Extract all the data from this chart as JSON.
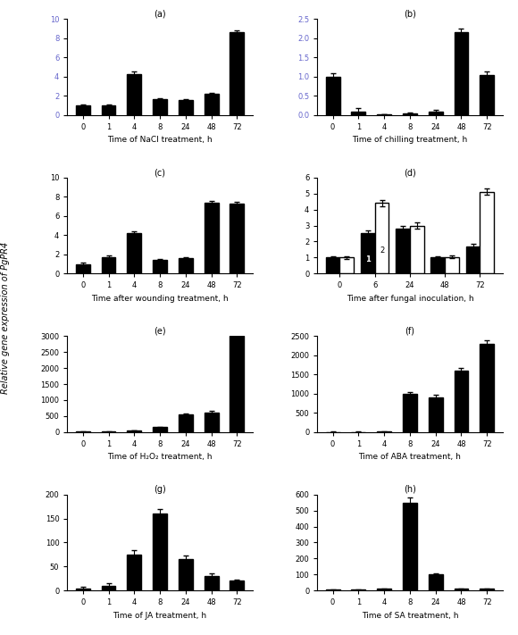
{
  "subplots": [
    {
      "label": "(a)",
      "xlabel": "Time of NaCl treatment, h",
      "x": [
        0,
        1,
        4,
        8,
        24,
        48,
        72
      ],
      "values": [
        1.0,
        1.0,
        4.3,
        1.65,
        1.55,
        2.2,
        8.6
      ],
      "errors": [
        0.1,
        0.1,
        0.2,
        0.15,
        0.1,
        0.15,
        0.2
      ],
      "ylim": [
        0,
        10
      ],
      "yticks": [
        0,
        2,
        4,
        6,
        8,
        10
      ],
      "bar_colors": [
        "black",
        "black",
        "black",
        "black",
        "black",
        "black",
        "black"
      ],
      "bar_edge_colors": [
        "black",
        "black",
        "black",
        "black",
        "black",
        "black",
        "black"
      ],
      "white_bars": [
        false,
        false,
        false,
        false,
        false,
        false,
        false
      ]
    },
    {
      "label": "(b)",
      "xlabel": "Time of chilling treatment, h",
      "x": [
        0,
        1,
        4,
        8,
        24,
        48,
        72
      ],
      "values": [
        1.0,
        0.1,
        0.02,
        0.05,
        0.08,
        2.15,
        1.05
      ],
      "errors": [
        0.08,
        0.08,
        0.01,
        0.02,
        0.05,
        0.1,
        0.08
      ],
      "ylim": [
        0,
        2.5
      ],
      "yticks": [
        0.0,
        0.5,
        1.0,
        1.5,
        2.0,
        2.5
      ],
      "bar_colors": [
        "black",
        "black",
        "black",
        "black",
        "black",
        "black",
        "black"
      ],
      "bar_edge_colors": [
        "black",
        "black",
        "black",
        "black",
        "black",
        "black",
        "black"
      ],
      "white_bars": [
        false,
        false,
        false,
        false,
        false,
        false,
        false
      ]
    },
    {
      "label": "(c)",
      "xlabel": "Time after wounding treatment, h",
      "x": [
        0,
        1,
        4,
        8,
        24,
        48,
        72
      ],
      "values": [
        1.0,
        1.7,
        4.2,
        1.4,
        1.6,
        7.4,
        7.3
      ],
      "errors": [
        0.1,
        0.15,
        0.2,
        0.12,
        0.1,
        0.2,
        0.15
      ],
      "ylim": [
        0,
        10
      ],
      "yticks": [
        0,
        2,
        4,
        6,
        8,
        10
      ],
      "bar_colors": [
        "black",
        "black",
        "black",
        "black",
        "black",
        "black",
        "black"
      ],
      "bar_edge_colors": [
        "black",
        "black",
        "black",
        "black",
        "black",
        "black",
        "black"
      ],
      "white_bars": [
        false,
        false,
        false,
        false,
        false,
        false,
        false
      ]
    },
    {
      "label": "(d)",
      "xlabel": "Time after fungal inoculation, h",
      "x": [
        0,
        6,
        24,
        48,
        72
      ],
      "values_black": [
        1.0,
        2.55,
        2.8,
        1.0,
        1.7
      ],
      "values_white": [
        1.0,
        4.4,
        3.0,
        1.05,
        5.1
      ],
      "errors_black": [
        0.08,
        0.15,
        0.2,
        0.1,
        0.15
      ],
      "errors_white": [
        0.08,
        0.2,
        0.2,
        0.08,
        0.2
      ],
      "ylim": [
        0,
        6
      ],
      "yticks": [
        0,
        1,
        2,
        3,
        4,
        5,
        6
      ],
      "has_two_series": true,
      "legend_labels": [
        "1",
        "2"
      ]
    },
    {
      "label": "(e)",
      "xlabel": "Time of H₂O₂ treatment, h",
      "x": [
        0,
        1,
        4,
        8,
        24,
        48,
        72
      ],
      "values": [
        10,
        10,
        50,
        150,
        550,
        600,
        3000
      ],
      "errors": [
        5,
        5,
        10,
        20,
        40,
        50,
        100
      ],
      "ylim": [
        0,
        3000
      ],
      "yticks": [
        0,
        500,
        1000,
        1500,
        2000,
        2500,
        3000
      ],
      "bar_colors": [
        "black",
        "black",
        "black",
        "black",
        "black",
        "black",
        "black"
      ],
      "bar_edge_colors": [
        "black",
        "black",
        "black",
        "black",
        "black",
        "black",
        "black"
      ],
      "white_bars": [
        false,
        false,
        false,
        false,
        false,
        false,
        false
      ]
    },
    {
      "label": "(f)",
      "xlabel": "Time of ABA treatment, h",
      "x": [
        0,
        1,
        4,
        8,
        24,
        48,
        72
      ],
      "values": [
        5,
        5,
        10,
        1000,
        900,
        1600,
        2300
      ],
      "errors": [
        3,
        3,
        5,
        50,
        60,
        80,
        100
      ],
      "ylim": [
        0,
        2500
      ],
      "yticks": [
        0,
        500,
        1000,
        1500,
        2000,
        2500
      ],
      "bar_colors": [
        "black",
        "black",
        "black",
        "black",
        "black",
        "black",
        "black"
      ],
      "bar_edge_colors": [
        "black",
        "black",
        "black",
        "black",
        "black",
        "black",
        "black"
      ],
      "white_bars": [
        false,
        false,
        false,
        false,
        false,
        false,
        false
      ]
    },
    {
      "label": "(g)",
      "xlabel": "Time of JA treatment, h",
      "x": [
        0,
        1,
        4,
        8,
        24,
        48,
        72
      ],
      "values": [
        5,
        10,
        75,
        160,
        65,
        30,
        20
      ],
      "errors": [
        3,
        5,
        10,
        10,
        8,
        5,
        3
      ],
      "ylim": [
        0,
        200
      ],
      "yticks": [
        0,
        50,
        100,
        150,
        200
      ],
      "bar_colors": [
        "black",
        "black",
        "black",
        "black",
        "black",
        "black",
        "black"
      ],
      "bar_edge_colors": [
        "black",
        "black",
        "black",
        "black",
        "black",
        "black",
        "black"
      ],
      "white_bars": [
        false,
        false,
        false,
        false,
        false,
        false,
        false
      ]
    },
    {
      "label": "(h)",
      "xlabel": "Time of SA treatment, h",
      "x": [
        0,
        1,
        4,
        8,
        24,
        48,
        72
      ],
      "values": [
        5,
        5,
        10,
        550,
        100,
        10,
        10
      ],
      "errors": [
        3,
        3,
        5,
        30,
        10,
        5,
        3
      ],
      "ylim": [
        0,
        600
      ],
      "yticks": [
        0,
        100,
        200,
        300,
        400,
        500,
        600
      ],
      "bar_colors": [
        "black",
        "black",
        "black",
        "black",
        "black",
        "black",
        "black"
      ],
      "bar_edge_colors": [
        "black",
        "black",
        "black",
        "black",
        "black",
        "black",
        "black"
      ],
      "white_bars": [
        false,
        false,
        false,
        false,
        false,
        false,
        false
      ]
    }
  ],
  "ylabel": "Relative gene expression of PgPR4",
  "bar_width": 0.55,
  "figsize": [
    5.8,
    7.11
  ],
  "dpi": 100
}
